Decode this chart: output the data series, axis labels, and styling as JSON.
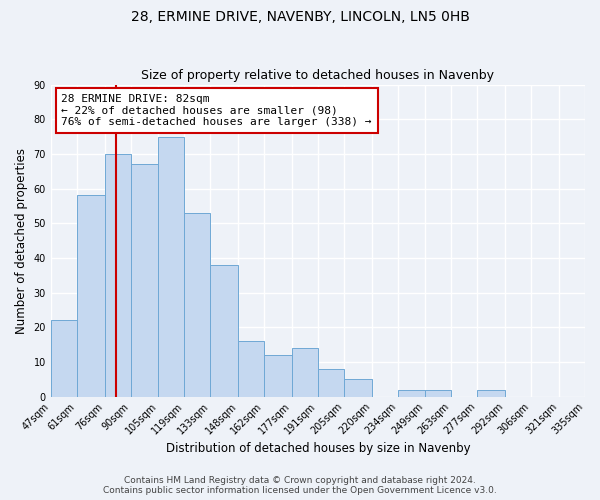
{
  "title": "28, ERMINE DRIVE, NAVENBY, LINCOLN, LN5 0HB",
  "subtitle": "Size of property relative to detached houses in Navenby",
  "xlabel": "Distribution of detached houses by size in Navenby",
  "ylabel": "Number of detached properties",
  "bin_edges": [
    47,
    61,
    76,
    90,
    105,
    119,
    133,
    148,
    162,
    177,
    191,
    205,
    220,
    234,
    249,
    263,
    277,
    292,
    306,
    321,
    335
  ],
  "bin_labels": [
    "47sqm",
    "61sqm",
    "76sqm",
    "90sqm",
    "105sqm",
    "119sqm",
    "133sqm",
    "148sqm",
    "162sqm",
    "177sqm",
    "191sqm",
    "205sqm",
    "220sqm",
    "234sqm",
    "249sqm",
    "263sqm",
    "277sqm",
    "292sqm",
    "306sqm",
    "321sqm",
    "335sqm"
  ],
  "counts": [
    22,
    58,
    70,
    67,
    75,
    53,
    38,
    16,
    12,
    14,
    8,
    5,
    0,
    2,
    2,
    0,
    2,
    0,
    0,
    0
  ],
  "bar_color": "#c5d8f0",
  "bar_edge_color": "#6fa8d5",
  "property_value": 82,
  "red_line_color": "#cc0000",
  "annotation_line1": "28 ERMINE DRIVE: 82sqm",
  "annotation_line2": "← 22% of detached houses are smaller (98)",
  "annotation_line3": "76% of semi-detached houses are larger (338) →",
  "annotation_box_color": "#ffffff",
  "annotation_box_edge_color": "#cc0000",
  "ylim": [
    0,
    90
  ],
  "yticks": [
    0,
    10,
    20,
    30,
    40,
    50,
    60,
    70,
    80,
    90
  ],
  "footer_line1": "Contains HM Land Registry data © Crown copyright and database right 2024.",
  "footer_line2": "Contains public sector information licensed under the Open Government Licence v3.0.",
  "background_color": "#eef2f8",
  "grid_color": "#ffffff",
  "title_fontsize": 10,
  "subtitle_fontsize": 9,
  "axis_label_fontsize": 8.5,
  "tick_fontsize": 7,
  "annotation_fontsize": 8,
  "footer_fontsize": 6.5
}
